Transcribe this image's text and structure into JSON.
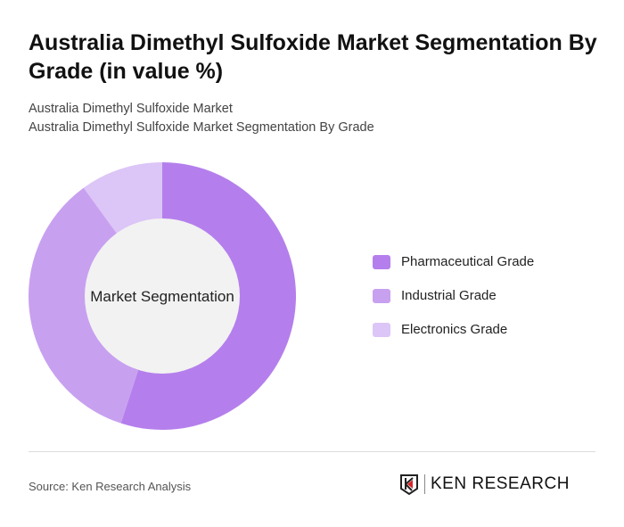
{
  "title": "Australia Dimethyl Sulfoxide Market Segmentation By Grade (in value %)",
  "subtitle1": "Australia Dimethyl Sulfoxide Market",
  "subtitle2": "Australia Dimethyl Sulfoxide Market Segmentation By Grade",
  "source": "Source: Ken Research Analysis",
  "logo": "KEN RESEARCH",
  "chart_data": {
    "type": "pie",
    "donut": true,
    "center_label": "Market Segmentation",
    "legend_position": "right",
    "categories": [
      "Pharmaceutical Grade",
      "Industrial Grade",
      "Electronics Grade"
    ],
    "values": [
      55,
      35,
      10
    ],
    "colors": [
      "#b47fec",
      "#c8a0f0",
      "#dcc5f7"
    ]
  }
}
